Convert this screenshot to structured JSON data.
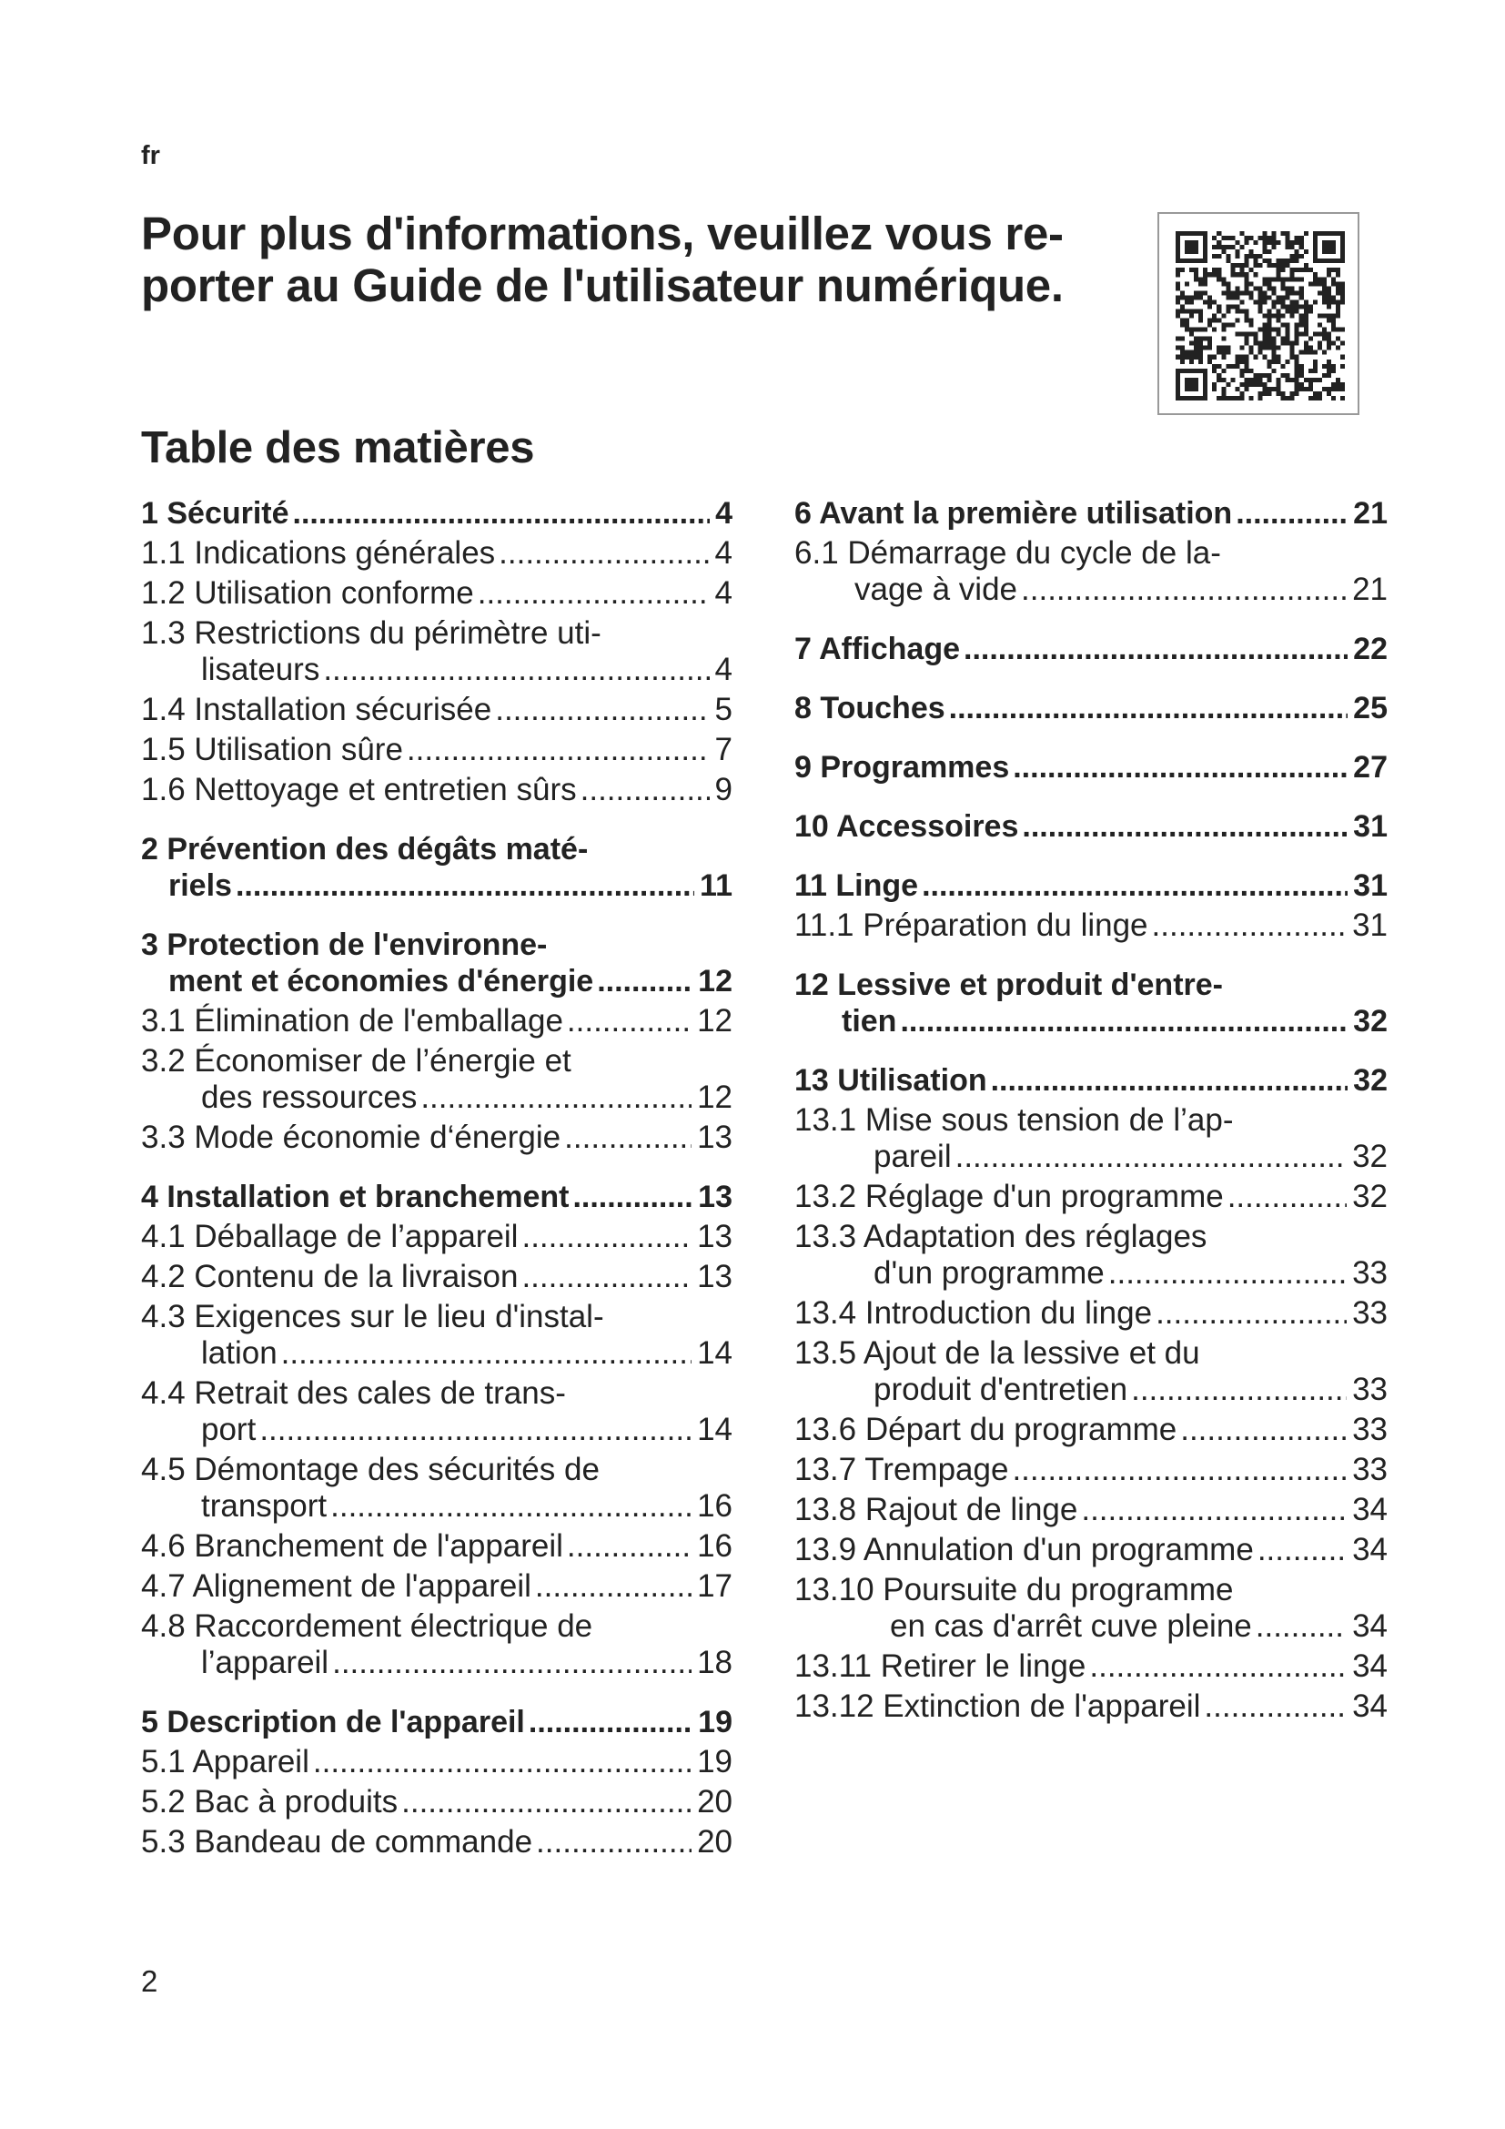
{
  "language": "fr",
  "page_title": "Pour plus d'informations, veuillez vous re-\nporter au Guide de l'utilisateur numérique.",
  "page_title_lines": [
    "Pour plus d'informations, veuillez vous re-",
    "porter au Guide de l'utilisateur numérique."
  ],
  "qr_code_icon": "qr-code",
  "toc": {
    "heading": "Table des matières",
    "left": [
      {
        "num": "1",
        "lines": [
          "Sécurité"
        ],
        "page": "4",
        "bold": true
      },
      {
        "num": "1.1",
        "lines": [
          "Indications générales"
        ],
        "page": "4"
      },
      {
        "num": "1.2",
        "lines": [
          "Utilisation conforme"
        ],
        "page": "4"
      },
      {
        "num": "1.3",
        "lines": [
          "Restrictions du périmètre uti-",
          "lisateurs"
        ],
        "page": "4"
      },
      {
        "num": "1.4",
        "lines": [
          "Installation sécurisée"
        ],
        "page": "5"
      },
      {
        "num": "1.5",
        "lines": [
          "Utilisation sûre"
        ],
        "page": "7"
      },
      {
        "num": "1.6",
        "lines": [
          "Nettoyage et entretien sûrs"
        ],
        "page": "9"
      },
      {
        "num": "2",
        "lines": [
          "Prévention des dégâts maté-",
          "riels"
        ],
        "page": "11",
        "bold": true
      },
      {
        "num": "3",
        "lines": [
          "Protection de l'environne-",
          "ment et économies d'énergie"
        ],
        "page": "12",
        "bold": true
      },
      {
        "num": "3.1",
        "lines": [
          "Élimination de l'emballage"
        ],
        "page": "12"
      },
      {
        "num": "3.2",
        "lines": [
          "Économiser de l’énergie et",
          "des ressources"
        ],
        "page": "12"
      },
      {
        "num": "3.3",
        "lines": [
          "Mode économie d‘énergie"
        ],
        "page": "13"
      },
      {
        "num": "4",
        "lines": [
          "Installation et branchement"
        ],
        "page": "13",
        "bold": true
      },
      {
        "num": "4.1",
        "lines": [
          "Déballage de l’appareil"
        ],
        "page": "13"
      },
      {
        "num": "4.2",
        "lines": [
          "Contenu de la livraison"
        ],
        "page": "13"
      },
      {
        "num": "4.3",
        "lines": [
          "Exigences sur le lieu d'instal-",
          "lation"
        ],
        "page": "14"
      },
      {
        "num": "4.4",
        "lines": [
          "Retrait des cales de trans-",
          "port"
        ],
        "page": "14"
      },
      {
        "num": "4.5",
        "lines": [
          "Démontage des sécurités de",
          "transport"
        ],
        "page": "16"
      },
      {
        "num": "4.6",
        "lines": [
          "Branchement de l'appareil"
        ],
        "page": "16"
      },
      {
        "num": "4.7",
        "lines": [
          "Alignement de l'appareil"
        ],
        "page": "17"
      },
      {
        "num": "4.8",
        "lines": [
          "Raccordement électrique de",
          "l’appareil"
        ],
        "page": "18"
      },
      {
        "num": "5",
        "lines": [
          "Description de l'appareil"
        ],
        "page": "19",
        "bold": true
      },
      {
        "num": "5.1",
        "lines": [
          "Appareil"
        ],
        "page": "19"
      },
      {
        "num": "5.2",
        "lines": [
          "Bac à produits"
        ],
        "page": "20"
      },
      {
        "num": "5.3",
        "lines": [
          "Bandeau de commande"
        ],
        "page": "20"
      }
    ],
    "right": [
      {
        "num": "6",
        "lines": [
          "Avant la première utilisation"
        ],
        "page": "21",
        "bold": true
      },
      {
        "num": "6.1",
        "lines": [
          "Démarrage du cycle de la-",
          "vage à vide"
        ],
        "page": "21"
      },
      {
        "num": "7",
        "lines": [
          "Affichage"
        ],
        "page": "22",
        "bold": true
      },
      {
        "num": "8",
        "lines": [
          "Touches"
        ],
        "page": "25",
        "bold": true
      },
      {
        "num": "9",
        "lines": [
          "Programmes"
        ],
        "page": "27",
        "bold": true
      },
      {
        "num": "10",
        "lines": [
          "Accessoires"
        ],
        "page": "31",
        "bold": true
      },
      {
        "num": "11",
        "lines": [
          "Linge"
        ],
        "page": "31",
        "bold": true
      },
      {
        "num": "11.1",
        "lines": [
          "Préparation du linge"
        ],
        "page": "31"
      },
      {
        "num": "12",
        "lines": [
          "Lessive et produit d'entre-",
          "tien"
        ],
        "page": "32",
        "bold": true
      },
      {
        "num": "13",
        "lines": [
          "Utilisation"
        ],
        "page": "32",
        "bold": true
      },
      {
        "num": "13.1",
        "lines": [
          "Mise sous tension de l’ap-",
          "pareil"
        ],
        "page": "32"
      },
      {
        "num": "13.2",
        "lines": [
          "Réglage d'un programme"
        ],
        "page": "32"
      },
      {
        "num": "13.3",
        "lines": [
          "Adaptation des réglages",
          "d'un programme"
        ],
        "page": "33"
      },
      {
        "num": "13.4",
        "lines": [
          "Introduction du linge"
        ],
        "page": "33"
      },
      {
        "num": "13.5",
        "lines": [
          "Ajout de la lessive et du",
          "produit d'entretien"
        ],
        "page": "33"
      },
      {
        "num": "13.6",
        "lines": [
          "Départ du programme"
        ],
        "page": "33"
      },
      {
        "num": "13.7",
        "lines": [
          "Trempage"
        ],
        "page": "33"
      },
      {
        "num": "13.8",
        "lines": [
          "Rajout de linge"
        ],
        "page": "34"
      },
      {
        "num": "13.9",
        "lines": [
          "Annulation d'un programme"
        ],
        "page": "34"
      },
      {
        "num": "13.10",
        "lines": [
          "Poursuite du programme",
          "en cas d'arrêt cuve pleine"
        ],
        "page": "34"
      },
      {
        "num": "13.11",
        "lines": [
          "Retirer le linge"
        ],
        "page": "34"
      },
      {
        "num": "13.12",
        "lines": [
          "Extinction de l'appareil"
        ],
        "page": "34"
      }
    ]
  },
  "page_number": "2"
}
